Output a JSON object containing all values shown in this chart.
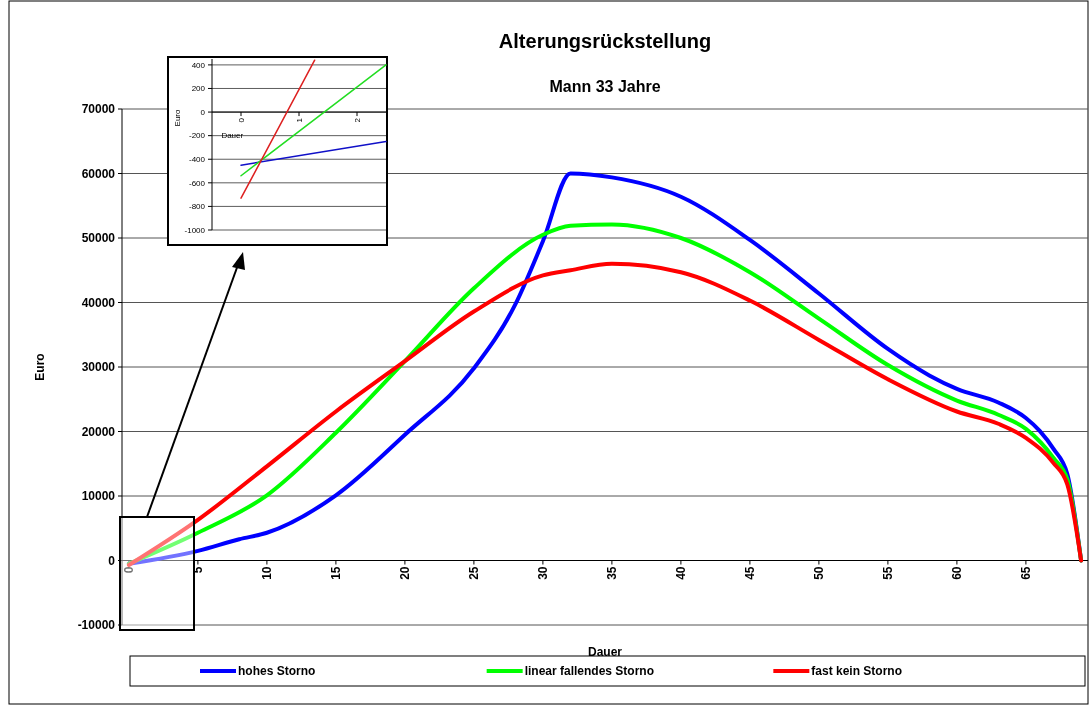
{
  "chart_data": [
    {
      "type": "line",
      "title": "Alterungsrückstellung",
      "subtitle": "Mann 33 Jahre",
      "xlabel": "Dauer",
      "ylabel": "Euro",
      "xlim": [
        -0.5,
        69.5
      ],
      "xticks": [
        0,
        5,
        10,
        15,
        20,
        25,
        30,
        35,
        40,
        45,
        50,
        55,
        60,
        65
      ],
      "ylim": [
        -10000,
        70000
      ],
      "yticks": [
        -10000,
        0,
        10000,
        20000,
        30000,
        40000,
        50000,
        60000,
        70000
      ],
      "grid": "y",
      "legend": "bottom",
      "marker": "none",
      "line_style": "solid",
      "series": [
        {
          "name": "hohes Storno",
          "color": "#0000ff",
          "x": [
            0,
            5,
            8,
            10,
            15,
            20,
            25,
            28,
            30,
            32,
            35,
            40,
            45,
            50,
            55,
            58,
            60,
            63,
            65,
            66,
            67,
            68,
            69
          ],
          "values": [
            -500,
            1500,
            3300,
            4300,
            10100,
            19500,
            29800,
            39700,
            49500,
            60000,
            59400,
            56400,
            49700,
            41400,
            32800,
            28700,
            26600,
            24500,
            22100,
            20100,
            17300,
            13400,
            0
          ]
        },
        {
          "name": "linear fallendes Storno",
          "color": "#00ff00",
          "x": [
            0,
            5,
            10,
            15,
            20,
            25,
            30,
            32,
            35,
            40,
            45,
            50,
            55,
            60,
            63,
            65,
            67,
            68,
            69
          ],
          "values": [
            -500,
            4300,
            10100,
            19800,
            30900,
            42200,
            50500,
            51900,
            52100,
            50000,
            44700,
            37500,
            30300,
            24800,
            22600,
            20400,
            15900,
            12600,
            0
          ]
        },
        {
          "name": "fast kein Storno",
          "color": "#ff0000",
          "x": [
            0,
            5,
            10,
            15,
            20,
            25,
            30,
            32,
            35,
            40,
            45,
            50,
            55,
            60,
            63,
            65,
            67,
            68,
            69
          ],
          "values": [
            -700,
            6300,
            14600,
            23100,
            30900,
            38600,
            44200,
            45000,
            46000,
            44700,
            40300,
            34200,
            28100,
            23100,
            21200,
            19000,
            15100,
            11800,
            0
          ]
        }
      ]
    },
    {
      "type": "line",
      "xlabel": "Dauer",
      "ylabel": "Euro",
      "xlim": [
        -0.5,
        2.5
      ],
      "xticks": [
        0,
        1,
        2
      ],
      "ylim": [
        -1000,
        450
      ],
      "yticks": [
        -1000,
        -800,
        -600,
        -400,
        -200,
        0,
        200,
        400
      ],
      "grid": "y",
      "marker": "none",
      "line_style": "solid",
      "series": [
        {
          "color": "#1010c8",
          "x": [
            0,
            2.5
          ],
          "values": [
            -450,
            -250
          ]
        },
        {
          "color": "#22dd22",
          "x": [
            0,
            2.5
          ],
          "values": [
            -540,
            400
          ]
        },
        {
          "color": "#dd2020",
          "x": [
            0,
            1.27
          ],
          "values": [
            -730,
            440
          ]
        }
      ]
    }
  ]
}
